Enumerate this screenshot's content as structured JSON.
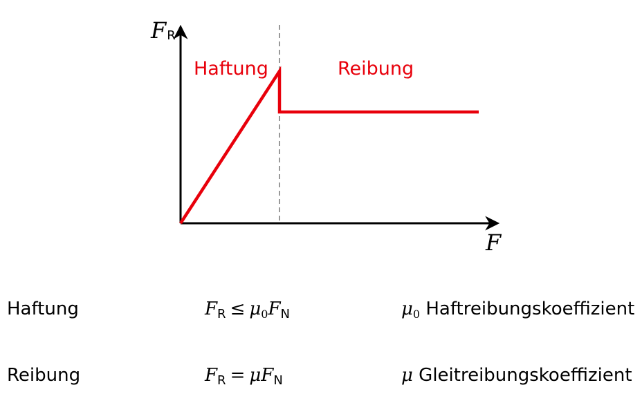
{
  "axes": {
    "y_label": "F",
    "y_label_sub": "R",
    "x_label": "F"
  },
  "regions": {
    "left_label": "Haftung",
    "right_label": "Reibung"
  },
  "colors": {
    "curve": "#e8000b",
    "axis": "#000000",
    "divider": "#555555"
  },
  "rows": [
    {
      "label": "Haftung",
      "formula": {
        "lhs": "F",
        "lhs_sub": "R",
        "op": "≤",
        "rhs_greek": "μ",
        "rhs_greek_sub": "0",
        "rhs": "F",
        "rhs_sub": "N"
      },
      "coef": {
        "symbol": "μ",
        "symbol_sub": "0",
        "text": "Haftreibungskoeffizient"
      }
    },
    {
      "label": "Reibung",
      "formula": {
        "lhs": "F",
        "lhs_sub": "R",
        "op": "=",
        "rhs_greek": "μ",
        "rhs_greek_sub": "",
        "rhs": "F",
        "rhs_sub": "N"
      },
      "coef": {
        "symbol": "μ",
        "symbol_sub": "",
        "text": "Gleitreibungskoeffizient"
      }
    }
  ]
}
